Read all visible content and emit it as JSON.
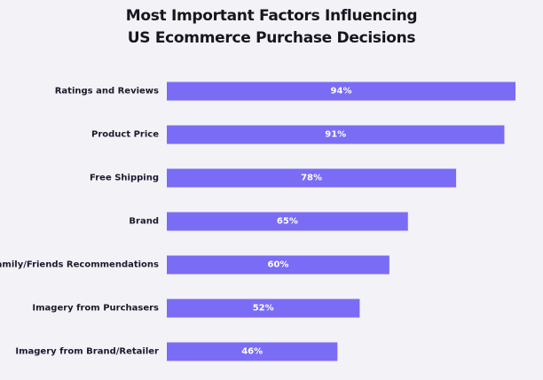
{
  "chart_data": {
    "type": "bar",
    "orientation": "horizontal",
    "title_lines": [
      "Most Important Factors Influencing",
      "US Ecommerce Purchase Decisions"
    ],
    "categories": [
      "Ratings and Reviews",
      "Product Price",
      "Free Shipping",
      "Brand",
      "Family/Friends Recommendations",
      "Imagery from Purchasers",
      "Imagery from Brand/Retailer"
    ],
    "values": [
      94,
      91,
      78,
      65,
      60,
      52,
      46
    ],
    "value_labels": [
      "94%",
      "91%",
      "78%",
      "65%",
      "60%",
      "52%",
      "46%"
    ],
    "xlim": [
      0,
      94
    ],
    "bar_color": "#7b6cf6",
    "background_color": "#f3f2f7",
    "grid": false,
    "legend": "none"
  }
}
